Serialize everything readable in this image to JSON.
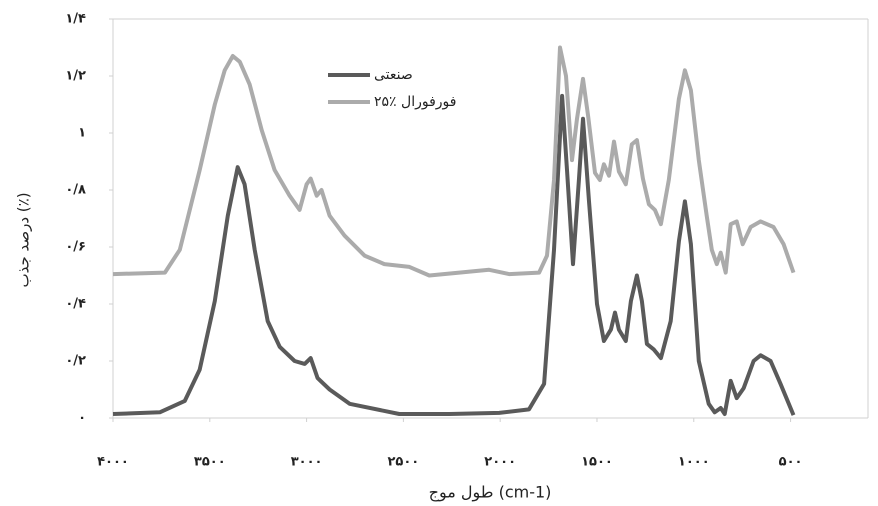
{
  "chart_data": {
    "type": "line",
    "x_label": "طول موج (cm-1)",
    "y_label": "درصد جذب (٪)",
    "xlim": [
      4000,
      100
    ],
    "ylim": [
      0,
      1.4
    ],
    "xticks": [
      {
        "value": 4000,
        "label": "۴۰۰۰"
      },
      {
        "value": 3500,
        "label": "۳۵۰۰"
      },
      {
        "value": 3000,
        "label": "۳۰۰۰"
      },
      {
        "value": 2500,
        "label": "۲۵۰۰"
      },
      {
        "value": 2000,
        "label": "۲۰۰۰"
      },
      {
        "value": 1500,
        "label": "۱۵۰۰"
      },
      {
        "value": 1000,
        "label": "۱۰۰۰"
      },
      {
        "value": 500,
        "label": "۵۰۰"
      }
    ],
    "yticks": [
      {
        "value": 0,
        "label": "۰"
      },
      {
        "value": 0.2,
        "label": "۰/۲"
      },
      {
        "value": 0.4,
        "label": "۰/۴"
      },
      {
        "value": 0.6,
        "label": "۰/۶"
      },
      {
        "value": 0.8,
        "label": "۰/۸"
      },
      {
        "value": 1,
        "label": "۱"
      },
      {
        "value": 1.2,
        "label": "۱/۲"
      },
      {
        "value": 1.4,
        "label": "۱/۴"
      }
    ],
    "grid": false,
    "series": [
      {
        "name": "صنعتی",
        "color": "#5a5a5a",
        "x": [
          4000,
          3758,
          3629,
          3552,
          3474,
          3407,
          3356,
          3320,
          3268,
          3201,
          3139,
          3062,
          3010,
          2979,
          2943,
          2881,
          2778,
          2521,
          2263,
          2005,
          1851,
          1773,
          1722,
          1680,
          1655,
          1624,
          1593,
          1572,
          1541,
          1500,
          1464,
          1428,
          1407,
          1387,
          1351,
          1325,
          1294,
          1268,
          1242,
          1206,
          1170,
          1119,
          1077,
          1046,
          1015,
          974,
          923,
          892,
          861,
          840,
          809,
          778,
          742,
          691,
          655,
          603,
          552,
          485
        ],
        "values": [
          0.014,
          0.02,
          0.06,
          0.17,
          0.41,
          0.71,
          0.88,
          0.82,
          0.59,
          0.34,
          0.25,
          0.2,
          0.19,
          0.21,
          0.14,
          0.1,
          0.05,
          0.014,
          0.014,
          0.018,
          0.03,
          0.12,
          0.59,
          1.13,
          0.87,
          0.54,
          0.84,
          1.05,
          0.76,
          0.4,
          0.27,
          0.31,
          0.37,
          0.31,
          0.27,
          0.41,
          0.5,
          0.41,
          0.26,
          0.24,
          0.21,
          0.34,
          0.62,
          0.76,
          0.61,
          0.2,
          0.05,
          0.02,
          0.035,
          0.014,
          0.13,
          0.07,
          0.105,
          0.2,
          0.22,
          0.2,
          0.12,
          0.01
        ]
      },
      {
        "name": "۲۵٪ فورفورال",
        "color": "#ababab",
        "x": [
          4000,
          3732,
          3655,
          3552,
          3474,
          3423,
          3381,
          3345,
          3294,
          3232,
          3165,
          3088,
          3036,
          3000,
          2979,
          2948,
          2923,
          2881,
          2804,
          2701,
          2598,
          2469,
          2366,
          2211,
          2057,
          1954,
          1799,
          1758,
          1722,
          1691,
          1660,
          1629,
          1603,
          1572,
          1546,
          1510,
          1485,
          1464,
          1438,
          1412,
          1387,
          1351,
          1320,
          1294,
          1263,
          1232,
          1201,
          1170,
          1129,
          1077,
          1046,
          1015,
          974,
          933,
          907,
          881,
          861,
          835,
          809,
          778,
          747,
          706,
          655,
          588,
          536,
          485
        ],
        "values": [
          0.505,
          0.51,
          0.59,
          0.87,
          1.1,
          1.22,
          1.27,
          1.25,
          1.17,
          1.01,
          0.87,
          0.78,
          0.73,
          0.82,
          0.84,
          0.78,
          0.8,
          0.71,
          0.64,
          0.57,
          0.54,
          0.53,
          0.5,
          0.51,
          0.52,
          0.505,
          0.51,
          0.57,
          0.835,
          1.3,
          1.2,
          0.905,
          1.05,
          1.19,
          1.06,
          0.86,
          0.835,
          0.89,
          0.85,
          0.97,
          0.865,
          0.82,
          0.96,
          0.975,
          0.84,
          0.75,
          0.73,
          0.68,
          0.835,
          1.12,
          1.22,
          1.15,
          0.905,
          0.71,
          0.59,
          0.54,
          0.58,
          0.51,
          0.68,
          0.69,
          0.61,
          0.67,
          0.69,
          0.67,
          0.61,
          0.51
        ]
      }
    ]
  }
}
